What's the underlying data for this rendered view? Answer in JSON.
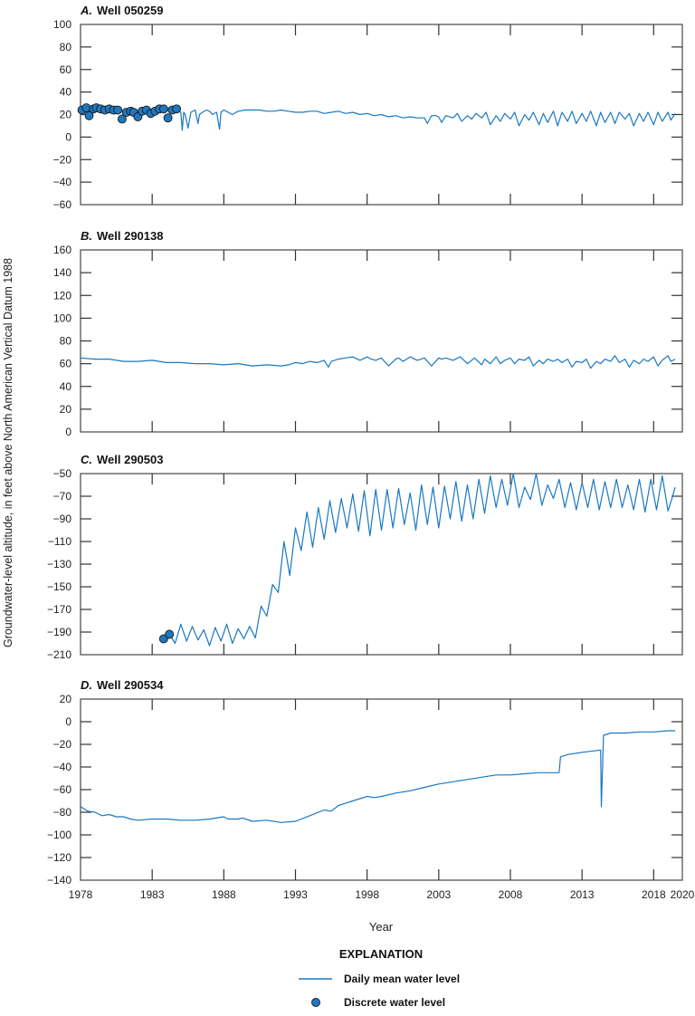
{
  "chart_data": [
    {
      "type": "line",
      "panel_letter": "A.",
      "title": "Well 050259",
      "xlim": [
        1978,
        2020
      ],
      "ylim": [
        -60,
        100
      ],
      "yticks": [
        100,
        80,
        60,
        40,
        20,
        0,
        -20,
        -40,
        -60
      ],
      "series": [
        {
          "name": "Daily mean water level",
          "x": [
            1984.8,
            1985.0,
            1985.1,
            1985.2,
            1985.3,
            1985.5,
            1985.7,
            1986.0,
            1986.2,
            1986.3,
            1986.5,
            1986.8,
            1987.0,
            1987.2,
            1987.5,
            1987.7,
            1987.8,
            1988.0,
            1988.3,
            1988.6,
            1989.0,
            1989.5,
            1990.0,
            1990.5,
            1991.0,
            1991.5,
            1992.0,
            1992.5,
            1993.0,
            1993.5,
            1994.0,
            1994.5,
            1995.0,
            1995.5,
            1996.0,
            1996.5,
            1997.0,
            1997.5,
            1998.0,
            1998.5,
            1999.0,
            1999.5,
            2000.0,
            2000.5,
            2001.0,
            2001.5,
            2002.0,
            2002.2,
            2002.5,
            2002.8,
            2003.0,
            2003.2,
            2003.5,
            2004.0,
            2004.3,
            2004.6,
            2005.0,
            2005.3,
            2005.6,
            2006.0,
            2006.3,
            2006.6,
            2007.0,
            2007.3,
            2007.6,
            2008.0,
            2008.3,
            2008.6,
            2009.0,
            2009.3,
            2009.6,
            2010.0,
            2010.3,
            2010.6,
            2011.0,
            2011.3,
            2011.6,
            2012.0,
            2012.3,
            2012.6,
            2013.0,
            2013.3,
            2013.6,
            2014.0,
            2014.3,
            2014.6,
            2015.0,
            2015.3,
            2015.6,
            2016.0,
            2016.3,
            2016.6,
            2017.0,
            2017.3,
            2017.6,
            2018.0,
            2018.3,
            2018.6,
            2019.0,
            2019.2,
            2019.5
          ],
          "y": [
            24,
            22,
            6,
            22,
            20,
            8,
            22,
            24,
            12,
            20,
            22,
            24,
            23,
            20,
            22,
            7,
            22,
            24,
            22,
            20,
            23,
            24,
            24,
            24,
            23,
            23,
            24,
            23,
            22,
            22,
            23,
            23,
            21,
            22,
            23,
            21,
            22,
            20,
            21,
            19,
            20,
            18,
            19,
            17,
            18,
            17,
            17,
            12,
            19,
            19,
            18,
            13,
            19,
            17,
            21,
            14,
            19,
            16,
            21,
            17,
            22,
            11,
            19,
            14,
            21,
            16,
            22,
            10,
            20,
            15,
            22,
            11,
            21,
            13,
            23,
            10,
            22,
            14,
            23,
            12,
            21,
            14,
            23,
            10,
            22,
            13,
            22,
            12,
            22,
            16,
            21,
            10,
            21,
            14,
            22,
            11,
            22,
            14,
            22,
            15,
            21
          ]
        },
        {
          "name": "Discrete water level",
          "x": [
            1978.1,
            1978.4,
            1978.6,
            1978.9,
            1979.1,
            1979.4,
            1979.7,
            1980.0,
            1980.3,
            1980.6,
            1980.9,
            1981.2,
            1981.5,
            1981.7,
            1982.0,
            1982.3,
            1982.6,
            1982.9,
            1983.2,
            1983.5,
            1983.8,
            1984.1,
            1984.4,
            1984.7
          ],
          "y": [
            24,
            26,
            19,
            25,
            26,
            25,
            24,
            25,
            24,
            24,
            16,
            22,
            23,
            22,
            18,
            23,
            24,
            21,
            23,
            25,
            25,
            17,
            24,
            25
          ]
        }
      ]
    },
    {
      "type": "line",
      "panel_letter": "B.",
      "title": "Well 290138",
      "xlim": [
        1978,
        2020
      ],
      "ylim": [
        0,
        160
      ],
      "yticks": [
        160,
        140,
        120,
        100,
        80,
        60,
        40,
        20,
        0
      ],
      "series": [
        {
          "name": "Daily mean water level",
          "x": [
            1978.0,
            1979.0,
            1980.0,
            1981.0,
            1982.0,
            1983.0,
            1984.0,
            1985.0,
            1986.0,
            1987.0,
            1988.0,
            1989.0,
            1990.0,
            1991.0,
            1992.0,
            1992.5,
            1993.0,
            1993.5,
            1994.0,
            1994.5,
            1995.0,
            1995.3,
            1995.5,
            1996.0,
            1996.5,
            1997.0,
            1997.5,
            1998.0,
            1998.3,
            1998.6,
            1999.0,
            1999.5,
            2000.0,
            2000.2,
            2000.5,
            2001.0,
            2001.5,
            2002.0,
            2002.5,
            2003.0,
            2003.2,
            2003.5,
            2004.0,
            2004.5,
            2005.0,
            2005.5,
            2006.0,
            2006.2,
            2006.6,
            2007.0,
            2007.3,
            2007.6,
            2008.0,
            2008.3,
            2008.6,
            2009.0,
            2009.3,
            2009.6,
            2010.0,
            2010.3,
            2010.6,
            2011.0,
            2011.3,
            2011.6,
            2012.0,
            2012.3,
            2012.6,
            2013.0,
            2013.3,
            2013.6,
            2014.0,
            2014.3,
            2014.6,
            2015.0,
            2015.3,
            2015.6,
            2016.0,
            2016.3,
            2016.6,
            2017.0,
            2017.3,
            2017.6,
            2018.0,
            2018.3,
            2018.6,
            2019.0,
            2019.2,
            2019.5
          ],
          "y": [
            65,
            64,
            64,
            62,
            62,
            63,
            61,
            61,
            60,
            60,
            59,
            60,
            58,
            59,
            58,
            59,
            61,
            60,
            62,
            61,
            63,
            57,
            62,
            64,
            65,
            66,
            63,
            66,
            64,
            63,
            65,
            58,
            64,
            65,
            62,
            66,
            63,
            65,
            58,
            65,
            64,
            65,
            63,
            66,
            60,
            65,
            59,
            64,
            60,
            66,
            60,
            63,
            65,
            60,
            64,
            63,
            66,
            58,
            63,
            60,
            64,
            62,
            64,
            61,
            64,
            57,
            62,
            61,
            64,
            56,
            62,
            60,
            64,
            62,
            67,
            61,
            64,
            57,
            63,
            60,
            64,
            62,
            66,
            58,
            63,
            67,
            62,
            64
          ]
        }
      ]
    },
    {
      "type": "line",
      "panel_letter": "C.",
      "title": "Well 290503",
      "xlim": [
        1978,
        2020
      ],
      "ylim": [
        -210,
        -50
      ],
      "yticks": [
        -50,
        -70,
        -90,
        -110,
        -130,
        -150,
        -170,
        -190,
        -210
      ],
      "series": [
        {
          "name": "Daily mean water level",
          "x": [
            1984.2,
            1984.6,
            1985.0,
            1985.4,
            1985.8,
            1986.2,
            1986.6,
            1987.0,
            1987.4,
            1987.8,
            1988.2,
            1988.6,
            1989.0,
            1989.4,
            1989.8,
            1990.2,
            1990.6,
            1991.0,
            1991.4,
            1991.8,
            1992.2,
            1992.6,
            1993.0,
            1993.4,
            1993.8,
            1994.2,
            1994.6,
            1995.0,
            1995.4,
            1995.8,
            1996.2,
            1996.6,
            1997.0,
            1997.4,
            1997.8,
            1998.2,
            1998.6,
            1999.0,
            1999.4,
            1999.8,
            2000.2,
            2000.6,
            2001.0,
            2001.4,
            2001.8,
            2002.2,
            2002.6,
            2003.0,
            2003.4,
            2003.8,
            2004.2,
            2004.6,
            2005.0,
            2005.4,
            2005.8,
            2006.2,
            2006.6,
            2007.0,
            2007.4,
            2007.8,
            2008.2,
            2008.6,
            2009.0,
            2009.4,
            2009.8,
            2010.2,
            2010.6,
            2011.0,
            2011.4,
            2011.8,
            2012.2,
            2012.6,
            2013.0,
            2013.4,
            2013.8,
            2014.2,
            2014.6,
            2015.0,
            2015.4,
            2015.8,
            2016.2,
            2016.6,
            2017.0,
            2017.4,
            2017.8,
            2018.2,
            2018.6,
            2019.0,
            2019.3,
            2019.5
          ],
          "y": [
            -192,
            -200,
            -183,
            -198,
            -185,
            -197,
            -188,
            -202,
            -186,
            -198,
            -183,
            -200,
            -187,
            -196,
            -185,
            -195,
            -167,
            -176,
            -148,
            -155,
            -110,
            -140,
            -98,
            -118,
            -84,
            -115,
            -80,
            -108,
            -74,
            -102,
            -72,
            -98,
            -68,
            -101,
            -65,
            -105,
            -64,
            -100,
            -64,
            -98,
            -63,
            -95,
            -67,
            -100,
            -60,
            -95,
            -62,
            -98,
            -61,
            -90,
            -57,
            -92,
            -60,
            -90,
            -55,
            -85,
            -52,
            -80,
            -55,
            -78,
            -50,
            -80,
            -62,
            -73,
            -50,
            -78,
            -60,
            -72,
            -55,
            -80,
            -58,
            -82,
            -58,
            -80,
            -55,
            -82,
            -57,
            -80,
            -55,
            -80,
            -60,
            -82,
            -55,
            -84,
            -55,
            -82,
            -52,
            -83,
            -71,
            -62
          ]
        },
        {
          "name": "Discrete water level",
          "x": [
            1983.8,
            1984.2
          ],
          "y": [
            -196,
            -192
          ]
        }
      ]
    },
    {
      "type": "line",
      "panel_letter": "D.",
      "title": "Well 290534",
      "xlim": [
        1978,
        2020
      ],
      "ylim": [
        -140,
        20
      ],
      "yticks": [
        20,
        0,
        -20,
        -40,
        -60,
        -80,
        -100,
        -120,
        -140
      ],
      "xticks": [
        1978,
        1983,
        1988,
        1993,
        1998,
        2003,
        2008,
        2013,
        2018,
        2020
      ],
      "series": [
        {
          "name": "Daily mean water level",
          "x": [
            1978.0,
            1978.5,
            1979.0,
            1979.5,
            1980.0,
            1980.5,
            1981.0,
            1981.5,
            1982.0,
            1983.0,
            1984.0,
            1985.0,
            1986.0,
            1987.0,
            1988.0,
            1988.3,
            1989.0,
            1989.3,
            1990.0,
            1991.0,
            1992.0,
            1993.0,
            1994.0,
            1995.0,
            1995.5,
            1996.0,
            1997.0,
            1998.0,
            1998.5,
            1999.0,
            2000.0,
            2001.0,
            2002.0,
            2003.0,
            2004.0,
            2005.0,
            2006.0,
            2007.0,
            2008.0,
            2009.0,
            2010.0,
            2011.0,
            2011.4,
            2011.5,
            2012.0,
            2013.0,
            2014.3,
            2014.35,
            2014.5,
            2015.0,
            2016.0,
            2017.0,
            2018.0,
            2019.0,
            2019.5
          ],
          "y": [
            -75,
            -79,
            -80,
            -83,
            -82,
            -84,
            -84,
            -86,
            -87,
            -86,
            -86,
            -87,
            -87,
            -86,
            -84,
            -86,
            -86,
            -85,
            -88,
            -87,
            -89,
            -88,
            -83,
            -78,
            -79,
            -74,
            -70,
            -66,
            -67,
            -66,
            -63,
            -61,
            -58,
            -55,
            -53,
            -51,
            -49,
            -47,
            -47,
            -46,
            -45,
            -45,
            -45,
            -31,
            -29,
            -27,
            -25,
            -75,
            -12,
            -10,
            -10,
            -9,
            -9,
            -8,
            -8
          ]
        }
      ]
    }
  ],
  "figure": {
    "ylabel": "Groundwater-level altitude, in feet above North American Vertical Datum 1988",
    "xlabel": "Year",
    "xtick_labels": [
      "1978",
      "1983",
      "1988",
      "1993",
      "1998",
      "2003",
      "2008",
      "2013",
      "2018",
      "2020"
    ],
    "line_color": "#1a78c2",
    "marker_color": "#1f77c0"
  },
  "legend": {
    "title": "EXPLANATION",
    "items": [
      {
        "label": "Daily mean water level",
        "symbol": "line"
      },
      {
        "label": "Discrete water level",
        "symbol": "circle"
      }
    ]
  }
}
